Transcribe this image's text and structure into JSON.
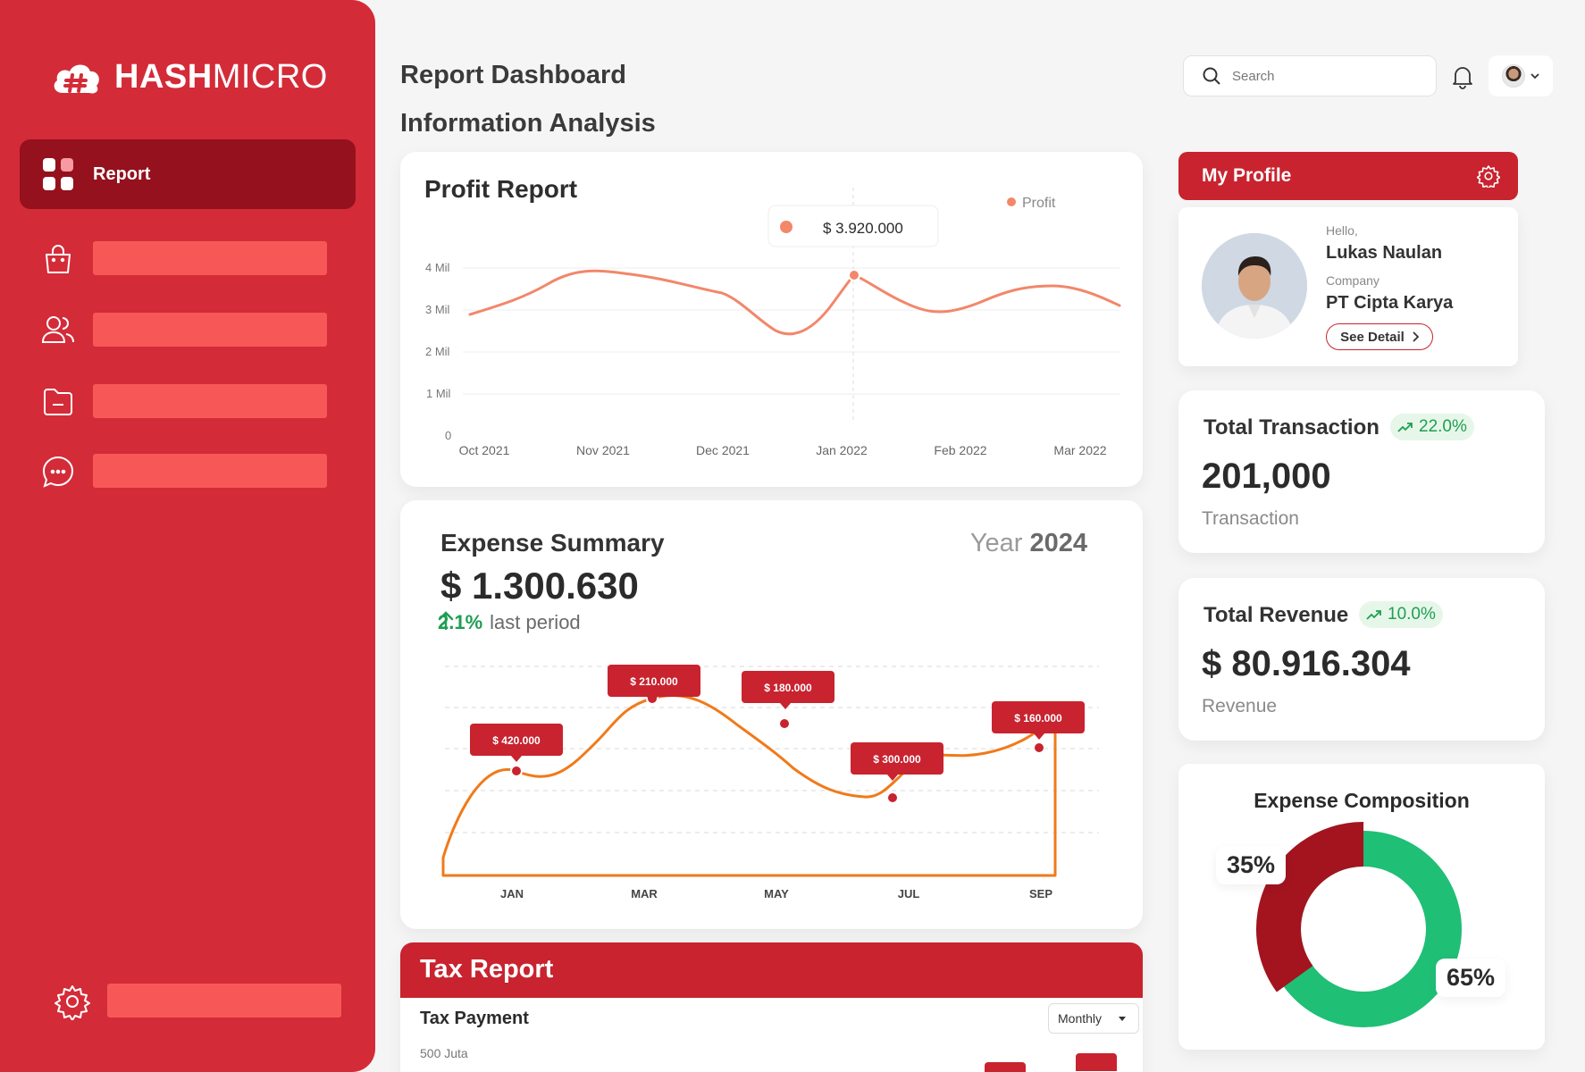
{
  "brand": {
    "name_bold": "HASH",
    "name_light": "MICRO"
  },
  "sidebar": {
    "active_label": "Report",
    "items": [
      {
        "icon": "shopping-bag-icon"
      },
      {
        "icon": "users-icon"
      },
      {
        "icon": "folder-icon"
      },
      {
        "icon": "chat-icon"
      }
    ],
    "settings_icon": "gear-icon"
  },
  "header": {
    "title": "Report Dashboard",
    "subtitle": "Information Analysis",
    "search_placeholder": "Search"
  },
  "profit_report": {
    "title": "Profit Report",
    "legend": "Profit",
    "tooltip": "$ 3.920.000",
    "y_ticks": [
      "4 Mil",
      "3 Mil",
      "2 Mil",
      "1 Mil",
      "0"
    ],
    "x_ticks": [
      "Oct 2021",
      "Nov 2021",
      "Dec 2021",
      "Jan 2022",
      "Feb 2022",
      "Mar 2022"
    ]
  },
  "expense_summary": {
    "title": "Expense Summary",
    "year_label": "Year",
    "year": "2024",
    "amount": "$ 1.300.630",
    "change_pct": "2.1%",
    "change_text": "last period",
    "x_ticks": [
      "JAN",
      "MAR",
      "MAY",
      "JUL",
      "SEP"
    ],
    "callouts": [
      "$ 420.000",
      "$ 210.000",
      "$ 180.000",
      "$ 300.000",
      "$ 160.000"
    ]
  },
  "tax_report": {
    "title": "Tax Report",
    "subtitle": "Tax Payment",
    "period": "Monthly",
    "y_tick": "500 Juta"
  },
  "profile": {
    "header": "My Profile",
    "hello": "Hello,",
    "name": "Lukas Naulan",
    "company_label": "Company",
    "company": "PT Cipta Karya",
    "button": "See Detail"
  },
  "stats": {
    "transaction": {
      "label": "Total Transaction",
      "change": "22.0%",
      "value": "201,000",
      "unit": "Transaction"
    },
    "revenue": {
      "label": "Total Revenue",
      "change": "10.0%",
      "value": "$ 80.916.304",
      "unit": "Revenue"
    }
  },
  "composition": {
    "title": "Expense Composition",
    "red_pct": "35%",
    "green_pct": "65%",
    "red_value": 35,
    "green_value": 65
  },
  "colors": {
    "brand_red": "#d42b38",
    "dark_red": "#95111d",
    "accent_green": "#1fbf76",
    "profit_line": "#f2876a",
    "expense_line": "#f07a1a"
  }
}
